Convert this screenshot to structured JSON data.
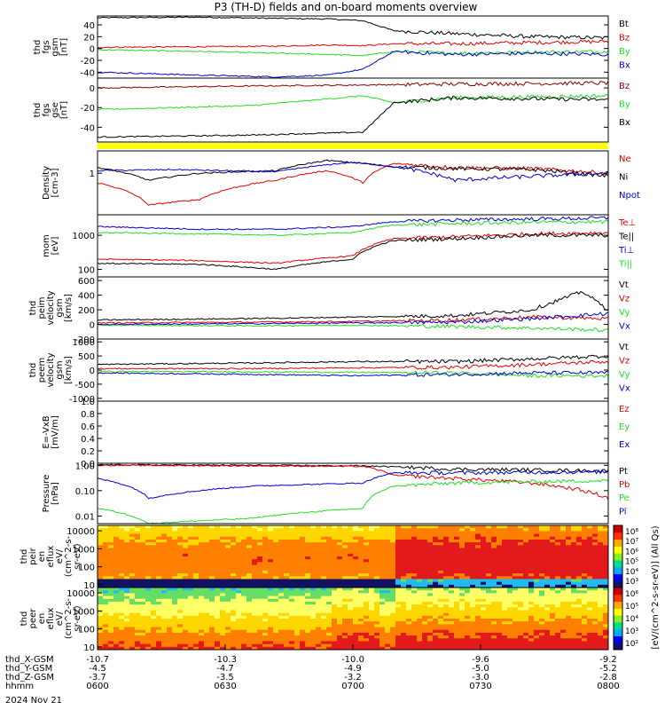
{
  "title": "P3 (TH-D) fields and on-board moments overview",
  "date_label": "2024 Nov 21",
  "chart_data": [
    {
      "id": "fgs_gsm",
      "type": "line",
      "ylabel": [
        "thd",
        "fgs",
        "gsm",
        "[nT]"
      ],
      "ylim": [
        -50,
        55
      ],
      "yticks": [
        40,
        20,
        0,
        -20,
        -40
      ],
      "ytick_labels": [
        "40",
        "20",
        "0",
        "-20",
        "-40"
      ],
      "series": [
        {
          "name": "Bt",
          "color": "#000000",
          "x": [
            0,
            0.2,
            0.35,
            0.45,
            0.52,
            0.58,
            0.7,
            0.85,
            1.0
          ],
          "y": [
            52,
            53,
            51,
            50,
            47,
            30,
            25,
            20,
            18
          ]
        },
        {
          "name": "Bz",
          "color": "#e00000",
          "x": [
            0,
            0.2,
            0.35,
            0.45,
            0.52,
            0.58,
            0.7,
            0.85,
            1.0
          ],
          "y": [
            2,
            3,
            4,
            6,
            5,
            8,
            8,
            10,
            12
          ]
        },
        {
          "name": "By",
          "color": "#22dd22",
          "x": [
            0,
            0.2,
            0.35,
            0.45,
            0.52,
            0.58,
            0.7,
            0.85,
            1.0
          ],
          "y": [
            -2,
            -5,
            -8,
            -10,
            -12,
            -5,
            -8,
            -6,
            -5
          ]
        },
        {
          "name": "Bx",
          "color": "#0000cc",
          "x": [
            0,
            0.2,
            0.35,
            0.45,
            0.52,
            0.58,
            0.7,
            0.85,
            1.0
          ],
          "y": [
            -40,
            -45,
            -48,
            -45,
            -35,
            -5,
            -10,
            -8,
            -10
          ]
        }
      ]
    },
    {
      "id": "fgs_gse",
      "type": "line",
      "ylabel": [
        "thd",
        "fgs",
        "gse",
        "[nT]"
      ],
      "ylim": [
        -55,
        10
      ],
      "yticks": [
        0,
        -20,
        -40
      ],
      "ytick_labels": [
        "0",
        "-20",
        "-40"
      ],
      "series": [
        {
          "name": "Bz",
          "color": "#880000",
          "x": [
            0,
            0.3,
            0.52,
            0.7,
            1.0
          ],
          "y": [
            0,
            2,
            3,
            4,
            5
          ]
        },
        {
          "name": "By",
          "color": "#22dd22",
          "x": [
            0,
            0.3,
            0.52,
            0.58,
            0.7,
            1.0
          ],
          "y": [
            -22,
            -18,
            -8,
            -15,
            -10,
            -8
          ]
        },
        {
          "name": "Bx",
          "color": "#000000",
          "x": [
            0,
            0.3,
            0.52,
            0.58,
            0.7,
            1.0
          ],
          "y": [
            -50,
            -48,
            -45,
            -15,
            -10,
            -12
          ]
        }
      ],
      "legend": [
        "Bz",
        "By",
        "Bx"
      ]
    },
    {
      "id": "density",
      "type": "line",
      "ylabel": [
        "Density",
        "[cm-3]"
      ],
      "yscale": "log",
      "ylim": [
        0.05,
        5
      ],
      "yticks": [
        1
      ],
      "ytick_labels": [
        "1"
      ],
      "series": [
        {
          "name": "Ne",
          "color": "#e00000",
          "x": [
            0,
            0.1,
            0.2,
            0.35,
            0.45,
            0.52,
            0.58,
            0.7,
            0.85,
            1.0
          ],
          "y": [
            0.5,
            0.1,
            0.15,
            0.6,
            1.2,
            0.5,
            2.0,
            1.5,
            1.4,
            1.0
          ]
        },
        {
          "name": "Ni",
          "color": "#000000",
          "x": [
            0,
            0.1,
            0.2,
            0.35,
            0.45,
            0.52,
            0.58,
            0.7,
            0.85,
            1.0
          ],
          "y": [
            1.5,
            0.6,
            1.0,
            1.2,
            2.5,
            2.0,
            1.6,
            1.4,
            1.3,
            0.8
          ]
        },
        {
          "name": "Npot",
          "color": "#0000cc",
          "x": [
            0,
            0.15,
            0.35,
            0.5,
            0.7,
            0.85,
            1.0
          ],
          "y": [
            1.2,
            1.3,
            1.1,
            2.2,
            0.6,
            0.8,
            1.0
          ]
        }
      ]
    },
    {
      "id": "moments_temp",
      "type": "line",
      "ylabel": [
        "mom",
        "[eV]"
      ],
      "yscale": "log",
      "ylim": [
        60,
        4000
      ],
      "yticks": [
        1000,
        100
      ],
      "ytick_labels": [
        "1000",
        "100"
      ],
      "series": [
        {
          "name": "Te⊥",
          "color": "#e00000",
          "x": [
            0,
            0.2,
            0.35,
            0.5,
            0.58,
            0.7,
            0.85,
            1.0
          ],
          "y": [
            200,
            180,
            150,
            250,
            800,
            900,
            1100,
            1200
          ]
        },
        {
          "name": "Te||",
          "color": "#000000",
          "x": [
            0,
            0.2,
            0.35,
            0.5,
            0.58,
            0.7,
            0.85,
            1.0
          ],
          "y": [
            150,
            140,
            100,
            200,
            700,
            800,
            1000,
            1000
          ]
        },
        {
          "name": "Ti⊥",
          "color": "#0000cc",
          "x": [
            0,
            0.2,
            0.35,
            0.5,
            0.58,
            0.7,
            0.85,
            1.0
          ],
          "y": [
            1800,
            1500,
            1500,
            1800,
            2500,
            2800,
            3000,
            3200
          ]
        },
        {
          "name": "Ti||",
          "color": "#22dd22",
          "x": [
            0,
            0.2,
            0.35,
            0.5,
            0.58,
            0.7,
            0.85,
            1.0
          ],
          "y": [
            1200,
            1100,
            1000,
            1200,
            2000,
            2200,
            2400,
            2500
          ]
        }
      ]
    },
    {
      "id": "peim_velocity",
      "type": "line",
      "ylabel": [
        "thd",
        "peim",
        "velocity",
        "gsm",
        "[km/s]"
      ],
      "ylim": [
        -200,
        650
      ],
      "yticks": [
        600,
        400,
        200,
        0,
        -200
      ],
      "ytick_labels": [
        "600",
        "400",
        "200",
        "0",
        "-200"
      ],
      "series": [
        {
          "name": "Vt",
          "color": "#000000",
          "x": [
            0,
            0.3,
            0.5,
            0.7,
            0.85,
            0.95,
            1.0
          ],
          "y": [
            60,
            80,
            100,
            120,
            200,
            450,
            200
          ]
        },
        {
          "name": "Vz",
          "color": "#e00000",
          "x": [
            0,
            0.3,
            0.5,
            0.7,
            0.85,
            1.0
          ],
          "y": [
            20,
            30,
            40,
            60,
            100,
            80
          ]
        },
        {
          "name": "Vy",
          "color": "#22dd22",
          "x": [
            0,
            0.3,
            0.5,
            0.7,
            0.85,
            1.0
          ],
          "y": [
            -10,
            -20,
            -10,
            -30,
            -50,
            -80
          ]
        },
        {
          "name": "Vx",
          "color": "#0000cc",
          "x": [
            0,
            0.3,
            0.5,
            0.7,
            0.85,
            1.0
          ],
          "y": [
            0,
            10,
            20,
            30,
            80,
            150
          ]
        }
      ]
    },
    {
      "id": "peem_velocity",
      "type": "line",
      "ylabel": [
        "thd",
        "peem",
        "velocity",
        "gsm",
        "[km/s]"
      ],
      "ylim": [
        -1100,
        1100
      ],
      "yticks": [
        1000,
        500,
        0,
        -500,
        -1000
      ],
      "ytick_labels": [
        "1000",
        "500",
        "0",
        "-500",
        "-1000"
      ],
      "series": [
        {
          "name": "Vt",
          "color": "#000000",
          "x": [
            0,
            0.3,
            0.5,
            0.7,
            0.85,
            1.0
          ],
          "y": [
            200,
            250,
            300,
            300,
            400,
            500
          ]
        },
        {
          "name": "Vz",
          "color": "#e00000",
          "x": [
            0,
            0.3,
            0.5,
            0.7,
            0.85,
            1.0
          ],
          "y": [
            50,
            50,
            80,
            100,
            200,
            300
          ]
        },
        {
          "name": "Vy",
          "color": "#22dd22",
          "x": [
            0,
            0.3,
            0.5,
            0.7,
            0.85,
            1.0
          ],
          "y": [
            -50,
            -60,
            -80,
            -100,
            -200,
            -200
          ]
        },
        {
          "name": "Vx",
          "color": "#0000cc",
          "x": [
            0,
            0.3,
            0.5,
            0.7,
            0.85,
            1.0
          ],
          "y": [
            -100,
            -150,
            -200,
            -150,
            -100,
            -100
          ]
        }
      ]
    },
    {
      "id": "e_field",
      "type": "line",
      "ylabel": [
        "E=-VxB",
        "[mV/m]"
      ],
      "ylim": [
        0,
        1
      ],
      "yticks": [
        1.0,
        0.8,
        0.6,
        0.4,
        0.2,
        0.0
      ],
      "ytick_labels": [
        "1.0",
        "0.8",
        "0.6",
        "0.4",
        "0.2",
        "0.0"
      ],
      "series": [
        {
          "name": "Ez",
          "color": "#e00000",
          "x": [],
          "y": []
        },
        {
          "name": "Ey",
          "color": "#22dd22",
          "x": [],
          "y": []
        },
        {
          "name": "Ex",
          "color": "#0000cc",
          "x": [],
          "y": []
        }
      ]
    },
    {
      "id": "pressure",
      "type": "line",
      "ylabel": [
        "Pressure",
        "[nPa]"
      ],
      "yscale": "log",
      "ylim": [
        0.005,
        1.2
      ],
      "yticks": [
        1.0,
        0.1,
        0.01
      ],
      "ytick_labels": [
        "1.00",
        "0.10",
        "0.01"
      ],
      "series": [
        {
          "name": "Pt",
          "color": "#000000",
          "x": [
            0,
            0.3,
            0.52,
            0.7,
            1.0
          ],
          "y": [
            1.05,
            1.0,
            0.95,
            0.7,
            0.6
          ]
        },
        {
          "name": "Pb",
          "color": "#e00000",
          "x": [
            0,
            0.3,
            0.52,
            0.58,
            0.7,
            0.85,
            1.0
          ],
          "y": [
            1.0,
            0.95,
            0.9,
            0.4,
            0.3,
            0.2,
            0.05
          ]
        },
        {
          "name": "Pe",
          "color": "#22dd22",
          "x": [
            0,
            0.1,
            0.3,
            0.52,
            0.58,
            0.7,
            1.0
          ],
          "y": [
            0.02,
            0.005,
            0.008,
            0.02,
            0.15,
            0.2,
            0.25
          ]
        },
        {
          "name": "Pi",
          "color": "#0000cc",
          "x": [
            0,
            0.1,
            0.3,
            0.52,
            0.58,
            0.7,
            1.0
          ],
          "y": [
            0.3,
            0.05,
            0.15,
            0.2,
            0.5,
            0.5,
            0.55
          ]
        }
      ]
    },
    {
      "id": "peir_spec",
      "type": "heatmap",
      "ylabel": [
        "thd",
        "peir",
        "en",
        "eflux",
        "eV/",
        "(cm^2-s-",
        "sr-eV)"
      ],
      "yscale": "log",
      "yticks": [
        10000,
        1000,
        100,
        10
      ],
      "ytick_labels": [
        "10000",
        "1000",
        "100",
        "10"
      ]
    },
    {
      "id": "peer_spec",
      "type": "heatmap",
      "ylabel": [
        "thd",
        "peer",
        "en",
        "eflux",
        "eV/",
        "(cm^2-s-",
        "sr-eV)"
      ],
      "yscale": "log",
      "yticks": [
        10000,
        1000,
        100,
        10
      ],
      "ytick_labels": [
        "10000",
        "1000",
        "100",
        "10"
      ]
    }
  ],
  "colorbar": {
    "label": "[eV/(cm^2-s-sr-eV)] (All Qs)",
    "ticks_top": [
      "10⁸",
      "10⁷",
      "10⁶",
      "10⁵",
      "10⁴",
      "10³"
    ],
    "ticks_bottom": [
      "10⁶",
      "10⁵",
      "10⁴",
      "10³",
      "10²"
    ]
  },
  "x_axis": {
    "rows": [
      {
        "name": "thd_X-GSM",
        "values": [
          "-10.7",
          "-10.3",
          "-10.0",
          "-9.6",
          "-9.2"
        ]
      },
      {
        "name": "thd_Y-GSM",
        "values": [
          "-4.5",
          "-4.7",
          "-4.9",
          "-5.0",
          "-5.2"
        ]
      },
      {
        "name": "thd_Z-GSM",
        "values": [
          "-3.7",
          "-3.5",
          "-3.2",
          "-3.0",
          "-2.8"
        ]
      },
      {
        "name": "hhmm",
        "values": [
          "0600",
          "0630",
          "0700",
          "0730",
          "0800"
        ]
      }
    ]
  }
}
